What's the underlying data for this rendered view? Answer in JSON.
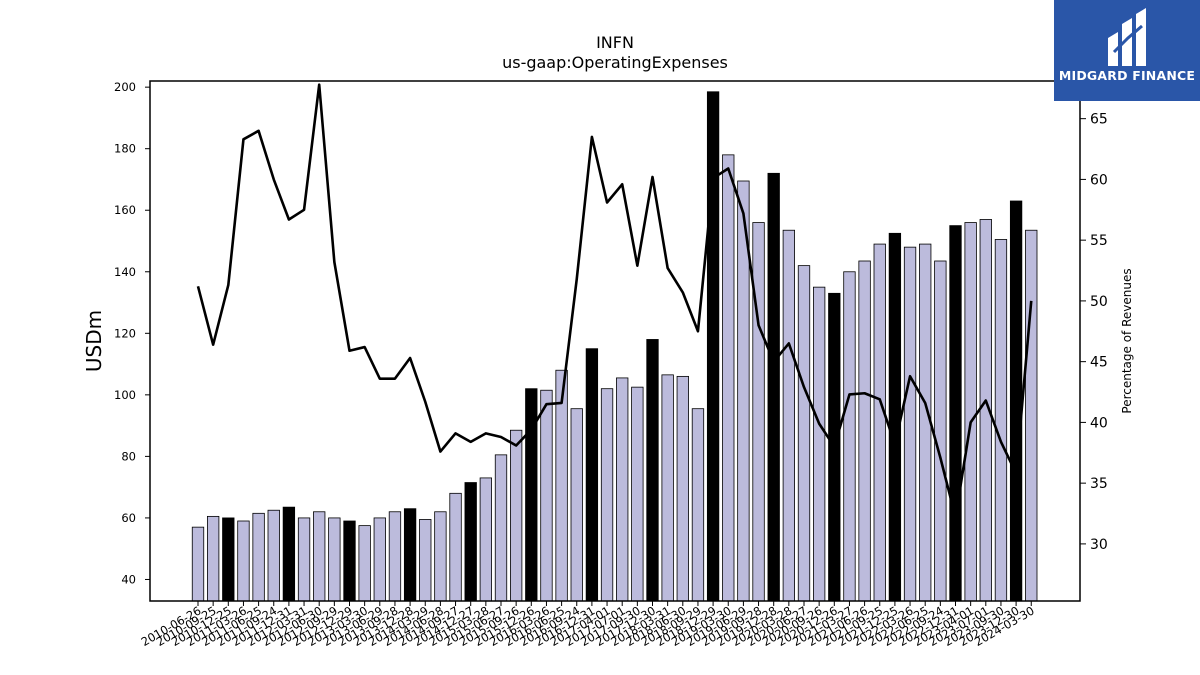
{
  "chart_data": {
    "type": "bar+line",
    "title": "INFN",
    "subtitle": "us-gaap:OperatingExpenses",
    "ylabel": "USDm",
    "y2label": "Percentage of Revenues",
    "ylim": [
      33,
      202
    ],
    "y2lim": [
      25.3,
      68.1
    ],
    "yticks": [
      40,
      60,
      80,
      100,
      120,
      140,
      160,
      180,
      200
    ],
    "y2ticks": [
      30,
      35,
      40,
      45,
      50,
      55,
      60,
      65
    ],
    "categories": [
      "2010-06-26",
      "2010-09-25",
      "2010-12-25",
      "2011-03-26",
      "2011-06-25",
      "2011-09-24",
      "2011-12-31",
      "2012-03-31",
      "2012-06-30",
      "2012-09-29",
      "2012-12-29",
      "2013-03-30",
      "2013-06-29",
      "2013-09-28",
      "2013-12-28",
      "2014-03-29",
      "2014-06-28",
      "2014-09-27",
      "2014-12-27",
      "2015-03-28",
      "2015-06-27",
      "2015-09-26",
      "2015-12-26",
      "2016-03-26",
      "2016-06-25",
      "2016-09-24",
      "2016-12-31",
      "2017-04-01",
      "2017-07-01",
      "2017-09-30",
      "2017-12-30",
      "2018-03-31",
      "2018-06-30",
      "2018-09-29",
      "2018-12-29",
      "2019-03-30",
      "2019-06-29",
      "2019-09-28",
      "2019-12-28",
      "2020-03-28",
      "2020-06-27",
      "2020-09-26",
      "2020-12-26",
      "2021-03-27",
      "2021-06-26",
      "2021-09-25",
      "2021-12-25",
      "2022-03-26",
      "2022-06-25",
      "2022-09-24",
      "2022-12-31",
      "2023-04-01",
      "2023-07-01",
      "2023-09-30",
      "2023-12-30",
      "2024-03-30"
    ],
    "series": [
      {
        "kind": "bar",
        "values": [
          57,
          60.5,
          60,
          59,
          61.5,
          62.5,
          63.5,
          60,
          62,
          60,
          59,
          57.5,
          60,
          62,
          63,
          59.5,
          62,
          68,
          71.5,
          73,
          80.5,
          88.5,
          102,
          101.5,
          108,
          95.5,
          115,
          102,
          105.5,
          102.5,
          118,
          106.5,
          106,
          95.5,
          198.5,
          178,
          169.5,
          156,
          172,
          153.5,
          142,
          135,
          133,
          140,
          143.5,
          149,
          152.5,
          148,
          149,
          143.5,
          155,
          156,
          157,
          150.5,
          163,
          153.5
        ],
        "highlight": [
          false,
          false,
          true,
          false,
          false,
          false,
          true,
          false,
          false,
          false,
          true,
          false,
          false,
          false,
          true,
          false,
          false,
          false,
          true,
          false,
          false,
          false,
          true,
          false,
          false,
          false,
          true,
          false,
          false,
          false,
          true,
          false,
          false,
          false,
          true,
          false,
          false,
          false,
          true,
          false,
          false,
          false,
          true,
          false,
          false,
          false,
          true,
          false,
          false,
          false,
          true,
          false,
          false,
          false,
          true,
          false
        ],
        "color": "#bcbbdc",
        "highlight_color": "#000000"
      },
      {
        "kind": "line",
        "axis": "right",
        "values": [
          51.2,
          46.4,
          51.3,
          63.3,
          64,
          60,
          56.7,
          57.5,
          67.8,
          53.2,
          45.9,
          46.2,
          43.6,
          43.6,
          45.3,
          41.7,
          37.6,
          39.1,
          38.4,
          39.1,
          38.8,
          38.1,
          39.4,
          41.5,
          41.6,
          51.8,
          63.5,
          58.1,
          59.6,
          52.9,
          60.2,
          52.7,
          50.7,
          47.5,
          60.1,
          60.9,
          57.2,
          48,
          45,
          46.5,
          42.9,
          39.9,
          38,
          42.3,
          42.4,
          41.9,
          38.2,
          43.8,
          41.6,
          37.1,
          32.2,
          40,
          41.8,
          38.4,
          35.8,
          50
        ],
        "color": "#000000"
      }
    ]
  },
  "brand": {
    "name": "MIDGARD FINANCE",
    "background": "#2a56a8"
  }
}
